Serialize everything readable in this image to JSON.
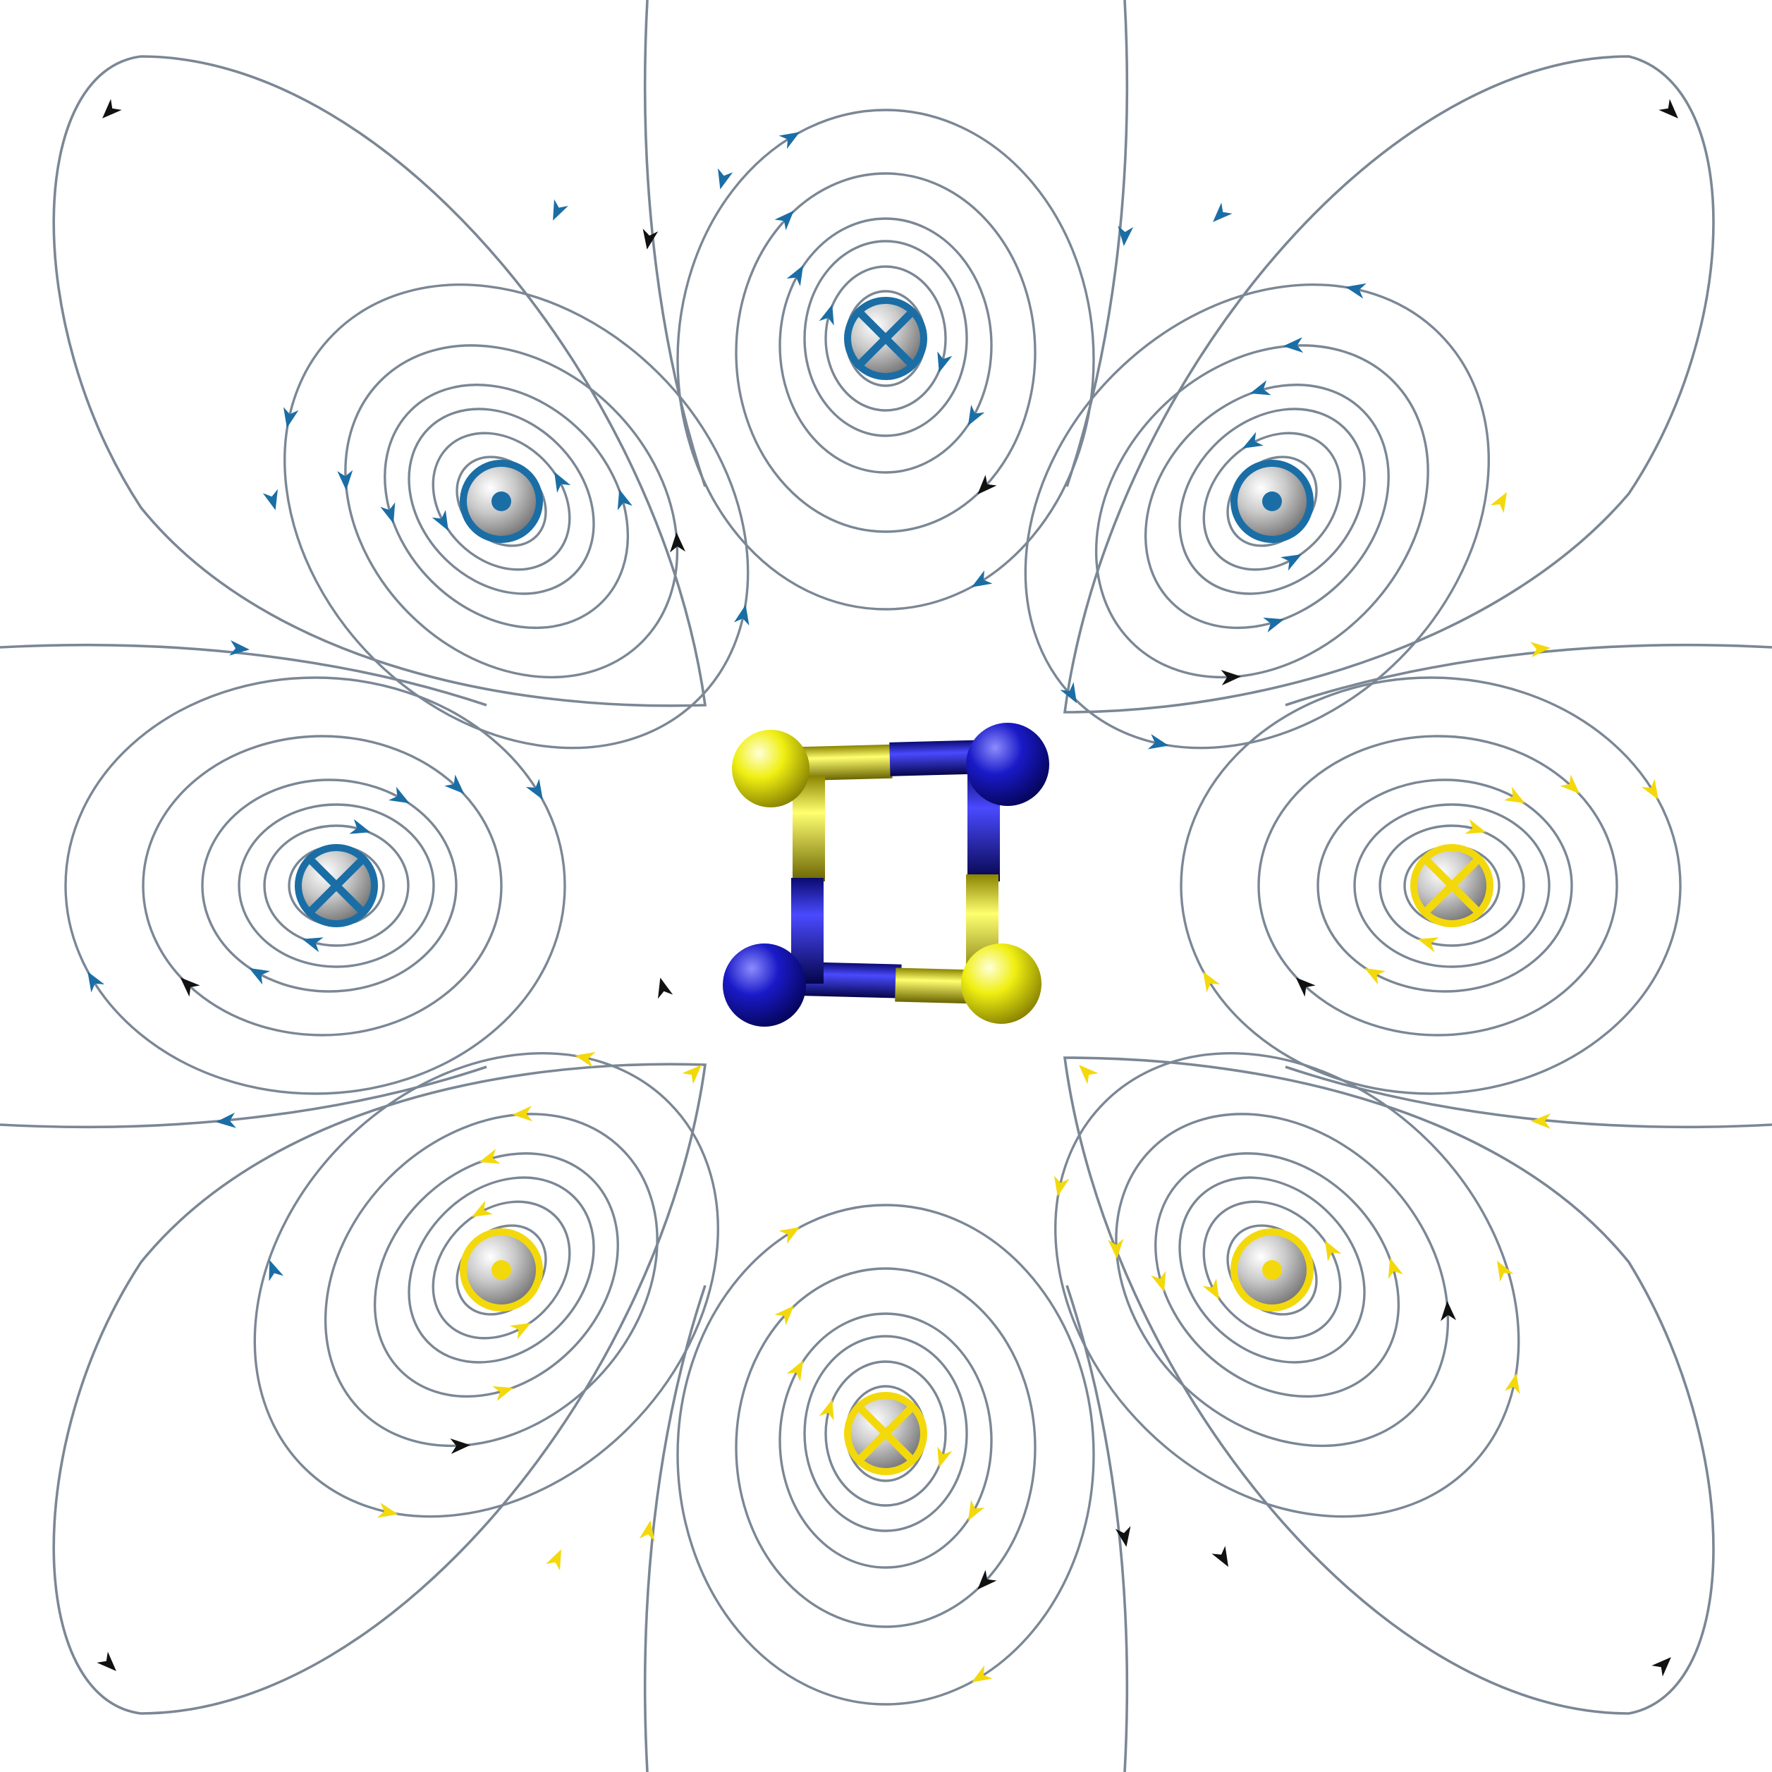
{
  "colors": {
    "background": "#ffffff",
    "field_line": "#7b8795",
    "arrow_blue": "#1a6ea5",
    "arrow_yellow": "#f3d90c",
    "arrow_black": "#111111",
    "marker_blue": "#1a6ea5",
    "marker_yellow": "#f3d90c",
    "nitrogen": "#1a1ac8",
    "sulfur": "#f0ef12",
    "probe_sphere": "#c9c9c9"
  },
  "diagram": {
    "molecule": {
      "atoms": [
        {
          "element": "S",
          "color_key": "sulfur"
        },
        {
          "element": "N",
          "color_key": "nitrogen"
        },
        {
          "element": "S",
          "color_key": "sulfur"
        },
        {
          "element": "N",
          "color_key": "nitrogen"
        }
      ],
      "bonds": [
        [
          "S",
          "N"
        ],
        [
          "N",
          "S"
        ],
        [
          "S",
          "N"
        ],
        [
          "N",
          "S"
        ]
      ]
    },
    "current_markers": [
      {
        "position": "top",
        "symbol": "cross",
        "color_key": "marker_blue",
        "arrow": "arrow_blue"
      },
      {
        "position": "upper-right",
        "symbol": "dot",
        "color_key": "marker_blue",
        "arrow": "arrow_blue"
      },
      {
        "position": "right",
        "symbol": "cross",
        "color_key": "marker_yellow",
        "arrow": "arrow_yellow"
      },
      {
        "position": "lower-right",
        "symbol": "dot",
        "color_key": "marker_yellow",
        "arrow": "arrow_yellow"
      },
      {
        "position": "bottom",
        "symbol": "cross",
        "color_key": "marker_yellow",
        "arrow": "arrow_yellow"
      },
      {
        "position": "lower-left",
        "symbol": "dot",
        "color_key": "marker_yellow",
        "arrow": "arrow_yellow"
      },
      {
        "position": "left",
        "symbol": "cross",
        "color_key": "marker_blue",
        "arrow": "arrow_blue"
      },
      {
        "position": "upper-left",
        "symbol": "dot",
        "color_key": "marker_blue",
        "arrow": "arrow_blue"
      }
    ]
  }
}
